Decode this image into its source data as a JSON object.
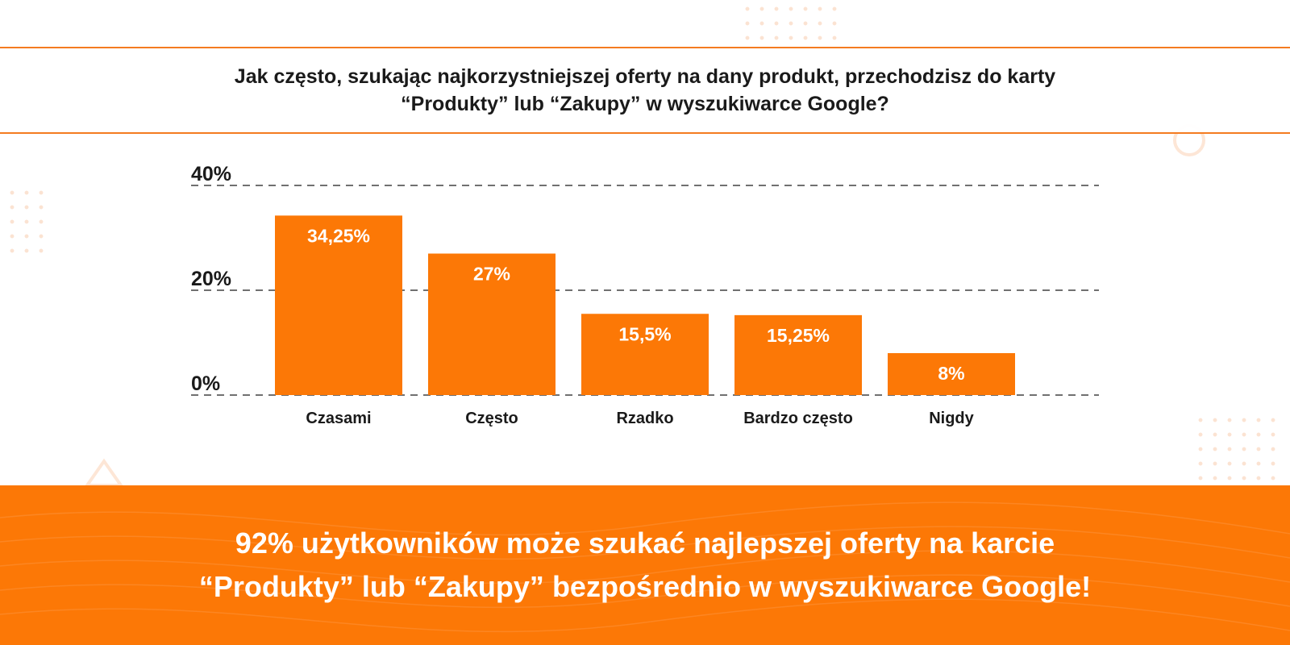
{
  "header": {
    "question_line1": "Jak często, szukając najkorzystniejszej oferty na dany produkt, przechodzisz do karty",
    "question_line2": "“Produkty” lub “Zakupy” w wyszukiwarce Google?"
  },
  "chart_data": {
    "type": "bar",
    "categories": [
      "Czasami",
      "Często",
      "Rzadko",
      "Bardzo często",
      "Nigdy"
    ],
    "values": [
      34.25,
      27,
      15.5,
      15.25,
      8
    ],
    "value_labels": [
      "34,25%",
      "27%",
      "15,5%",
      "15,25%",
      "8%"
    ],
    "yticks": [
      "0%",
      "20%",
      "40%"
    ],
    "ylim": [
      0,
      40
    ],
    "grid": true,
    "legend": "none",
    "bar_color": "#fc7806"
  },
  "footer": {
    "line1": "92% użytkowników może szukać najlepszej oferty na karcie",
    "line2": "“Produkty” lub “Zakupy” bezpośrednio w wyszukiwarce Google!"
  },
  "colors": {
    "accent": "#f47b20",
    "bar": "#fc7806",
    "text": "#1a1a1a"
  }
}
